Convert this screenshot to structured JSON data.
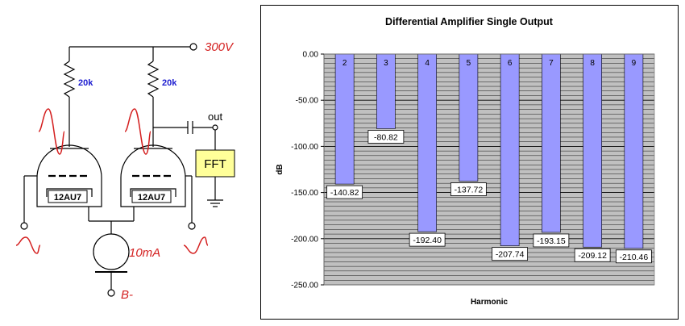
{
  "schematic": {
    "supply_label": "300V",
    "resistor_left_label": "20k",
    "resistor_right_label": "20k",
    "output_label": "out",
    "fft_label": "FFT",
    "tube_left_label": "12AU7",
    "tube_right_label": "12AU7",
    "current_source_label": "10mA",
    "negative_rail_label": "B-",
    "colors": {
      "red": "#d42020",
      "blue": "#1c1cd0",
      "fft_box": "#ffff99"
    }
  },
  "chart_data": {
    "type": "bar",
    "title": "Differential Amplifier Single Output",
    "xlabel": "Harmonic",
    "ylabel": "dB",
    "ylim": [
      -250,
      0
    ],
    "ytick_labels": [
      "0.00",
      "-50.00",
      "-100.00",
      "-150.00",
      "-200.00",
      "-250.00"
    ],
    "ytick_values": [
      0,
      -50,
      -100,
      -150,
      -200,
      -250
    ],
    "categories": [
      "2",
      "3",
      "4",
      "5",
      "6",
      "7",
      "8",
      "9"
    ],
    "values": [
      -140.82,
      -80.82,
      -192.4,
      -137.72,
      -207.74,
      -193.15,
      -209.12,
      -210.46
    ],
    "data_labels": [
      "-140.82",
      "-80.82",
      "-192.40",
      "-137.72",
      "-207.74",
      "-193.15",
      "-209.12",
      "-210.46"
    ],
    "grid": true,
    "colors": {
      "bar": "#9999ff",
      "plot_bg": "#c0c0c0",
      "grid": "#000000"
    }
  }
}
